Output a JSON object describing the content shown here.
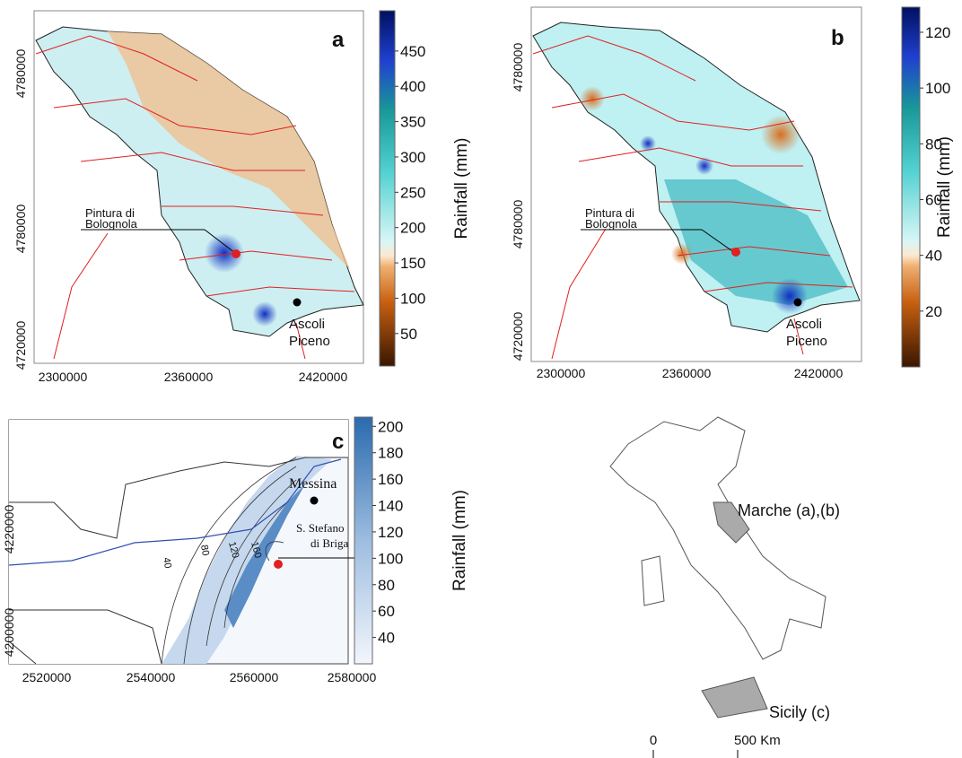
{
  "panels": [
    {
      "label": "a",
      "xticks": [
        "2300000",
        "2360000",
        "2420000"
      ],
      "yticks": [
        "4780000",
        "4780000",
        "4720000"
      ],
      "site": [
        "Pintura di",
        "Bolognola"
      ],
      "city": [
        "Ascoli",
        "Piceno"
      ],
      "colorbar": {
        "title": "Rainfall (mm)",
        "lim": [
          4,
          507
        ],
        "ticks": [
          450,
          400,
          350,
          300,
          250,
          200,
          150,
          100,
          50
        ]
      }
    },
    {
      "label": "b",
      "xticks": [
        "2300000",
        "2360000",
        "2420000"
      ],
      "yticks": [
        "4780000",
        "4780000",
        "4720000"
      ],
      "site": [
        "Pintura di",
        "Bolognola"
      ],
      "city": [
        "Ascoli",
        "Piceno"
      ],
      "colorbar": {
        "title": "Rainfall (mm)",
        "lim": [
          0,
          129
        ],
        "ticks": [
          120,
          100,
          80,
          60,
          40,
          20
        ]
      }
    },
    {
      "label": "c",
      "xticks": [
        "2520000",
        "2540000",
        "2560000",
        "2580000"
      ],
      "yticks": [
        "4220000",
        "4200000"
      ],
      "site": [
        "S. Stefano",
        "di Briga"
      ],
      "city": [
        "Messina"
      ],
      "contours": [
        "40",
        "80",
        "120",
        "160"
      ],
      "colorbar": {
        "title": "Rainfall (mm)",
        "lim": [
          20,
          207
        ],
        "ticks": [
          200,
          180,
          160,
          140,
          120,
          100,
          80,
          60,
          40
        ]
      }
    }
  ],
  "italy": {
    "marche": "Marche (a),(b)",
    "sicily": "Sicily (c)",
    "scale": [
      "0",
      "500 Km"
    ]
  }
}
